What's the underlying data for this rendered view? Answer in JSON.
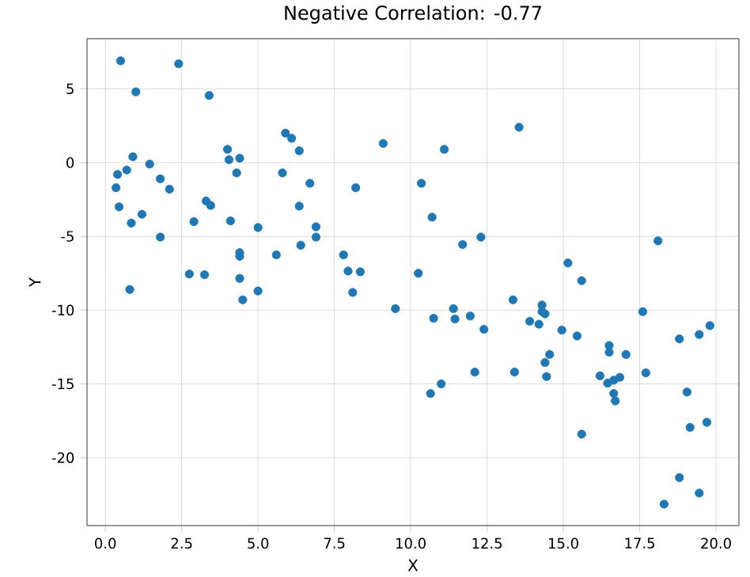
{
  "chart_data": {
    "type": "scatter",
    "title": "Negative Correlation: -0.77",
    "xlabel": "X",
    "ylabel": "Y",
    "xlim": [
      -0.6,
      20.75
    ],
    "ylim": [
      -24.6,
      8.4
    ],
    "xticks": [
      {
        "value": 0,
        "label": "0.0"
      },
      {
        "value": 2.5,
        "label": "2.5"
      },
      {
        "value": 5,
        "label": "5.0"
      },
      {
        "value": 7.5,
        "label": "7.5"
      },
      {
        "value": 10,
        "label": "10.0"
      },
      {
        "value": 12.5,
        "label": "12.5"
      },
      {
        "value": 15,
        "label": "15.0"
      },
      {
        "value": 17.5,
        "label": "17.5"
      },
      {
        "value": 20,
        "label": "20.0"
      }
    ],
    "yticks": [
      -20,
      -15,
      -10,
      -5,
      0,
      5
    ],
    "grid": true,
    "marker": "circle",
    "series": [
      {
        "color": "#1f77b4",
        "x": [
          0.35,
          0.4,
          0.45,
          0.5,
          0.7,
          0.8,
          0.85,
          0.9,
          1.0,
          1.2,
          1.45,
          1.8,
          1.8,
          2.1,
          2.4,
          2.75,
          2.9,
          3.25,
          3.3,
          3.4,
          3.45,
          4.0,
          4.05,
          4.1,
          4.3,
          4.4,
          4.4,
          4.4,
          4.4,
          4.5,
          5.0,
          5.0,
          5.6,
          5.8,
          5.9,
          6.1,
          6.35,
          6.35,
          6.4,
          6.7,
          6.9,
          6.9,
          7.8,
          7.95,
          8.1,
          8.2,
          8.35,
          9.1,
          9.5,
          10.25,
          10.35,
          10.65,
          10.7,
          10.75,
          11.0,
          11.1,
          11.4,
          11.45,
          11.7,
          11.95,
          12.1,
          12.3,
          12.4,
          13.35,
          13.4,
          13.55,
          13.9,
          14.2,
          14.3,
          14.3,
          14.4,
          14.4,
          14.45,
          14.55,
          14.95,
          15.15,
          15.45,
          15.6,
          15.6,
          16.2,
          16.45,
          16.5,
          16.5,
          16.65,
          16.65,
          16.7,
          16.85,
          17.05,
          17.6,
          17.7,
          18.1,
          18.3,
          18.8,
          18.8,
          19.05,
          19.15,
          19.45,
          19.45,
          19.7,
          19.8
        ],
        "values": [
          -1.7,
          -0.8,
          -3.0,
          6.9,
          -0.5,
          -8.6,
          -4.1,
          0.4,
          4.8,
          -3.5,
          -0.1,
          -1.1,
          -5.05,
          -1.8,
          6.7,
          -7.55,
          -4.0,
          -7.6,
          -2.6,
          4.55,
          -2.9,
          0.9,
          0.2,
          -3.95,
          -0.7,
          0.3,
          -6.1,
          -6.35,
          -7.85,
          -9.3,
          -4.4,
          -8.7,
          -6.25,
          -0.7,
          2.0,
          1.65,
          0.8,
          -2.95,
          -5.6,
          -1.4,
          -4.35,
          -5.05,
          -6.25,
          -7.35,
          -8.8,
          -1.7,
          -7.4,
          1.3,
          -9.9,
          -7.5,
          -1.4,
          -15.65,
          -3.7,
          -10.55,
          -15.0,
          0.9,
          -9.9,
          -10.6,
          -5.55,
          -10.4,
          -14.2,
          -5.05,
          -11.3,
          -9.3,
          -14.2,
          2.4,
          -10.75,
          -10.95,
          -9.65,
          -10.1,
          -10.25,
          -13.55,
          -14.5,
          -13.0,
          -11.35,
          -6.8,
          -11.75,
          -8.0,
          -18.4,
          -14.45,
          -14.95,
          -12.4,
          -12.85,
          -14.75,
          -15.65,
          -16.15,
          -14.55,
          -13.0,
          -10.1,
          -14.25,
          -5.3,
          -23.15,
          -11.95,
          -21.35,
          -15.55,
          -17.95,
          -11.65,
          -22.4,
          -17.6,
          -11.05
        ]
      }
    ]
  }
}
